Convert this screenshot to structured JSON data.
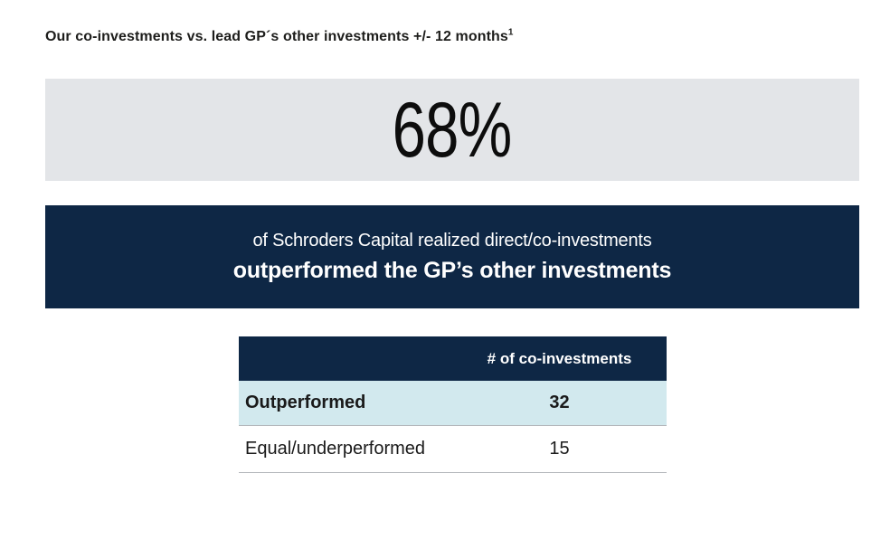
{
  "header": {
    "title": "Our co-investments vs. lead GP´s other investments +/- 12 months",
    "footnote_marker": "1"
  },
  "stat": {
    "value": "68%"
  },
  "banner": {
    "line1": "of Schroders Capital realized direct/co-investments",
    "line2": "outperformed the GP’s other investments"
  },
  "table": {
    "header": {
      "label": "",
      "value": "# of co-investments"
    },
    "rows": [
      {
        "label": "Outperformed",
        "value": "32"
      },
      {
        "label": "Equal/underperformed",
        "value": "15"
      }
    ]
  },
  "colors": {
    "navy": "#0e2745",
    "stat_box_gray": "#e3e5e8",
    "row_highlight_blue": "#d2e9ee",
    "text_dark": "#1d1d1b",
    "separator_gray": "#b3b6ba"
  },
  "chart_data": {
    "type": "table",
    "title": "Our co-investments vs. lead GP´s other investments +/- 12 months¹",
    "highlight": {
      "value_pct": 68,
      "description": "of Schroders Capital realized direct/co-investments outperformed the GP’s other investments"
    },
    "columns": [
      "",
      "# of co-investments"
    ],
    "rows": [
      [
        "Outperformed",
        32
      ],
      [
        "Equal/underperformed",
        15
      ]
    ],
    "layout_notes": "Outperformed row highlighted in pale blue; header row navy with white text; 68% stat shown in large gray callout box above navy banner"
  }
}
